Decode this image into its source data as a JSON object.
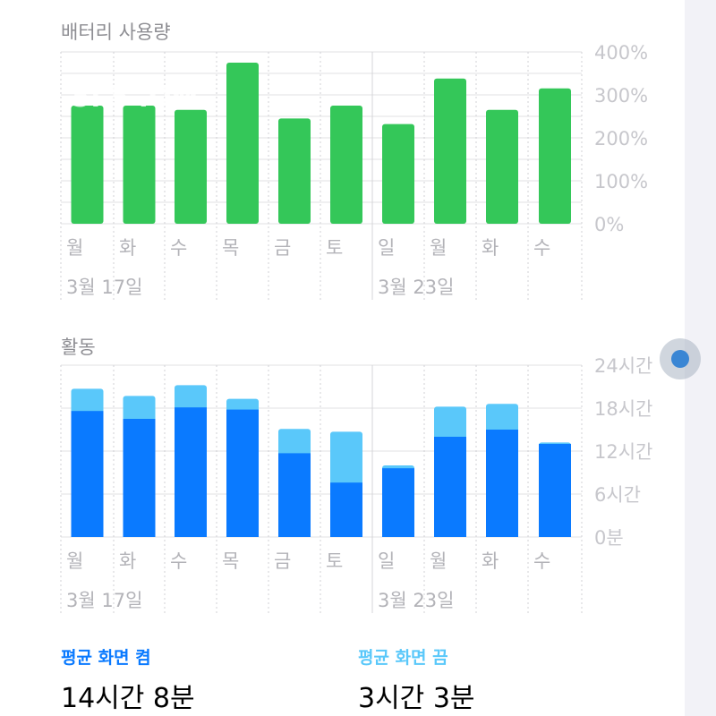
{
  "battery": {
    "title": "배터리 사용량",
    "overlay_time": "5: 5 .OM",
    "overlay_faint": "",
    "y_ticks": [
      "400%",
      "300%",
      "200%",
      "100%",
      "0%"
    ],
    "date_labels": [
      "3월 17일",
      "3월 23일"
    ],
    "color": "#34c759"
  },
  "activity": {
    "title": "활동",
    "y_ticks": [
      "24시간",
      "18시간",
      "12시간",
      "6시간",
      "0분"
    ],
    "date_labels": [
      "3월 17일",
      "3월 23일"
    ],
    "screen_on_color": "#0a7aff",
    "screen_off_color": "#5ac8fa"
  },
  "stats": {
    "screen_on_label": "평균 화면 켬",
    "screen_on_value": "14시간 8분",
    "screen_off_label": "평균 화면 끔",
    "screen_off_value": "3시간 3분"
  },
  "chart_data": [
    {
      "type": "bar",
      "title": "배터리 사용량",
      "categories": [
        "월",
        "화",
        "수",
        "목",
        "금",
        "토",
        "일",
        "월",
        "화",
        "수"
      ],
      "values": [
        275,
        275,
        265,
        375,
        245,
        275,
        232,
        338,
        265,
        315
      ],
      "ylabel": "",
      "ylim": [
        0,
        400
      ],
      "unit": "%"
    },
    {
      "type": "bar",
      "stacked": true,
      "title": "활동",
      "categories": [
        "월",
        "화",
        "수",
        "목",
        "금",
        "토",
        "일",
        "월",
        "화",
        "수"
      ],
      "series": [
        {
          "name": "평균 화면 켬",
          "values": [
            17.6,
            16.5,
            18.1,
            17.8,
            11.7,
            7.6,
            9.6,
            14.0,
            15.0,
            13.0
          ]
        },
        {
          "name": "평균 화면 끔",
          "values": [
            3.1,
            3.2,
            3.1,
            1.5,
            3.4,
            7.1,
            0.4,
            4.2,
            3.6,
            0.2
          ]
        }
      ],
      "ylim": [
        0,
        24
      ],
      "unit": "시간"
    }
  ]
}
